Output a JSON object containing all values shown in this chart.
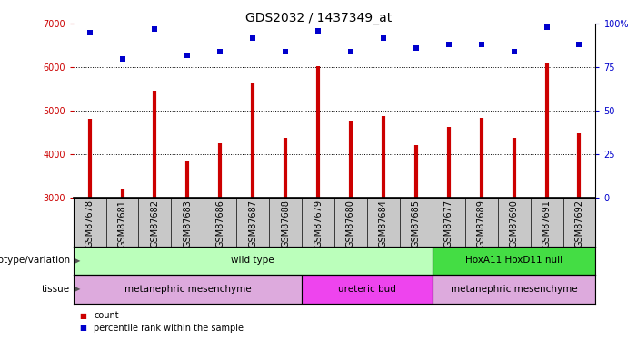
{
  "title": "GDS2032 / 1437349_at",
  "samples": [
    "GSM87678",
    "GSM87681",
    "GSM87682",
    "GSM87683",
    "GSM87686",
    "GSM87687",
    "GSM87688",
    "GSM87679",
    "GSM87680",
    "GSM87684",
    "GSM87685",
    "GSM87677",
    "GSM87689",
    "GSM87690",
    "GSM87691",
    "GSM87692"
  ],
  "counts": [
    4800,
    3200,
    5450,
    3820,
    4250,
    5650,
    4380,
    6020,
    4750,
    4870,
    4200,
    4620,
    4820,
    4380,
    6100,
    4480
  ],
  "percentile_ranks": [
    95,
    80,
    97,
    82,
    84,
    92,
    84,
    96,
    84,
    92,
    86,
    88,
    88,
    84,
    98,
    88
  ],
  "ymin": 3000,
  "ymax": 7000,
  "yticks": [
    3000,
    4000,
    5000,
    6000,
    7000
  ],
  "y2ticks": [
    0,
    25,
    50,
    75,
    100
  ],
  "y2tick_labels": [
    "0",
    "25",
    "50",
    "75",
    "100%"
  ],
  "bar_color": "#cc0000",
  "dot_color": "#0000cc",
  "title_fontsize": 10,
  "tick_fontsize": 7,
  "annot_fontsize": 7.5,
  "genotype_sections": [
    {
      "text": "wild type",
      "start": 0,
      "end": 11,
      "color": "#bbffbb"
    },
    {
      "text": "HoxA11 HoxD11 null",
      "start": 11,
      "end": 16,
      "color": "#44dd44"
    }
  ],
  "tissue_sections": [
    {
      "text": "metanephric mesenchyme",
      "start": 0,
      "end": 7,
      "color": "#ddaadd"
    },
    {
      "text": "ureteric bud",
      "start": 7,
      "end": 11,
      "color": "#ee44ee"
    },
    {
      "text": "metanephric mesenchyme",
      "start": 11,
      "end": 16,
      "color": "#ddaadd"
    }
  ],
  "genotype_label": "genotype/variation",
  "tissue_label": "tissue",
  "legend_items": [
    {
      "color": "#cc0000",
      "label": "count"
    },
    {
      "color": "#0000cc",
      "label": "percentile rank within the sample"
    }
  ]
}
